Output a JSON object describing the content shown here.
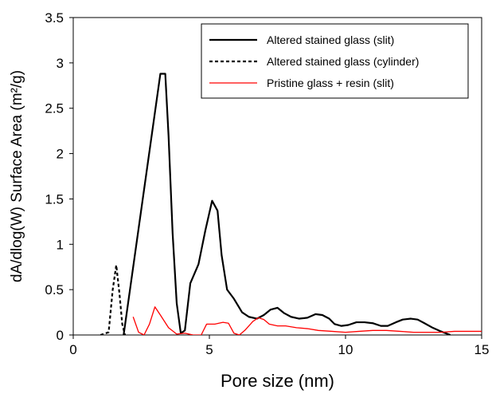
{
  "chart_data": {
    "type": "line",
    "title": "",
    "xlabel": "Pore size (nm)",
    "ylabel": "dA/dlog(W) Surface Area (m²/g)",
    "xlim": [
      0,
      15
    ],
    "ylim": [
      0,
      3.5
    ],
    "x_ticks": [
      "0",
      "5",
      "10",
      "15"
    ],
    "y_ticks": [
      "0",
      "0.5",
      "1",
      "1.5",
      "2",
      "2.5",
      "3",
      "3.5"
    ],
    "grid": false,
    "legend_position": "top-right",
    "series": [
      {
        "name": "Altered stained glass (slit)",
        "color": "#000000",
        "style": "solid",
        "x": [
          1.85,
          3.2,
          3.38,
          3.5,
          3.65,
          3.8,
          3.95,
          4.1,
          4.3,
          4.6,
          4.85,
          5.1,
          5.3,
          5.45,
          5.65,
          5.9,
          6.2,
          6.45,
          6.75,
          7.0,
          7.25,
          7.5,
          7.75,
          8.0,
          8.3,
          8.6,
          8.9,
          9.15,
          9.4,
          9.6,
          9.85,
          10.1,
          10.4,
          10.7,
          11.0,
          11.3,
          11.55,
          11.85,
          12.1,
          12.4,
          12.65,
          12.9,
          13.2,
          13.5,
          13.85
        ],
        "y": [
          0,
          2.88,
          2.88,
          2.2,
          1.12,
          0.35,
          0.02,
          0.05,
          0.57,
          0.78,
          1.15,
          1.48,
          1.37,
          0.88,
          0.5,
          0.4,
          0.25,
          0.2,
          0.18,
          0.22,
          0.28,
          0.3,
          0.24,
          0.2,
          0.18,
          0.19,
          0.23,
          0.22,
          0.18,
          0.12,
          0.1,
          0.11,
          0.14,
          0.14,
          0.13,
          0.1,
          0.1,
          0.14,
          0.17,
          0.18,
          0.17,
          0.13,
          0.08,
          0.04,
          0.0
        ]
      },
      {
        "name": "Altered stained glass (cylinder)",
        "color": "#000000",
        "style": "dashed",
        "x": [
          1.0,
          1.3,
          1.45,
          1.58,
          1.7,
          1.8,
          1.9
        ],
        "y": [
          0,
          0.03,
          0.5,
          0.77,
          0.45,
          0.12,
          0.0
        ]
      },
      {
        "name": "Pristine glass + resin (slit)",
        "color": "#ff0000",
        "style": "solid",
        "x": [
          2.2,
          2.4,
          2.6,
          2.8,
          3.0,
          3.2,
          3.5,
          3.8,
          4.1,
          4.4,
          4.7,
          4.9,
          5.2,
          5.5,
          5.7,
          5.9,
          6.1,
          6.3,
          6.6,
          6.8,
          7.0,
          7.2,
          7.5,
          7.8,
          8.2,
          8.6,
          9.0,
          9.5,
          10.0,
          10.5,
          11.0,
          11.5,
          12.0,
          12.5,
          13.0,
          13.5,
          14.0,
          14.5,
          15.0
        ],
        "y": [
          0.2,
          0.03,
          0.0,
          0.12,
          0.31,
          0.22,
          0.08,
          0.01,
          0.02,
          0.0,
          0.0,
          0.12,
          0.12,
          0.14,
          0.13,
          0.02,
          0.0,
          0.05,
          0.15,
          0.19,
          0.17,
          0.12,
          0.1,
          0.1,
          0.08,
          0.07,
          0.05,
          0.04,
          0.03,
          0.04,
          0.05,
          0.05,
          0.04,
          0.03,
          0.03,
          0.03,
          0.04,
          0.04,
          0.04
        ]
      }
    ]
  }
}
